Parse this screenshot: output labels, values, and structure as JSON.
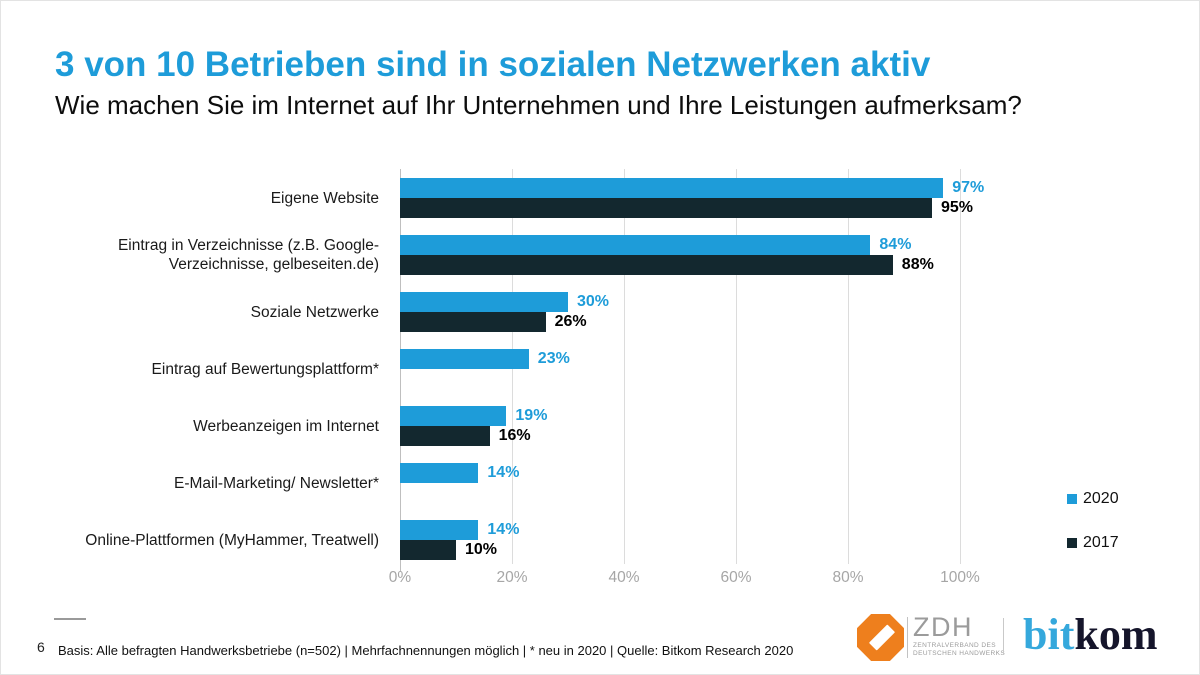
{
  "slide": {
    "title": "3 von 10 Betrieben sind in sozialen Netzwerken aktiv",
    "subtitle": "Wie machen Sie im Internet auf Ihr Unternehmen und Ihre Leistungen aufmerksam?"
  },
  "colors": {
    "accent_blue": "#1E9CD9",
    "dark_navy": "#13282F",
    "grid_gray": "#DCDCDC",
    "axis_gray": "#BFBFBF",
    "tick_label_gray": "#A6A6A6",
    "value_label_dark": "#000000",
    "zdh_orange": "#EE7F1D",
    "zdh_gray": "#9B9B9B",
    "bitkom_blue": "#35A8DC",
    "bitkom_dark": "#15152B"
  },
  "chart_data": {
    "type": "bar",
    "orientation": "horizontal",
    "title": "",
    "xlabel": "",
    "ylabel": "",
    "categories": [
      "Eigene Website",
      "Eintrag in Verzeichnisse (z.B. Google-Verzeichnisse, gelbeseiten.de)",
      "Soziale Netzwerke",
      "Eintrag auf Bewertungsplattform*",
      "Werbeanzeigen im Internet",
      "E-Mail-Marketing/ Newsletter*",
      "Online-Plattformen (MyHammer, Treatwell)"
    ],
    "series": [
      {
        "name": "2020",
        "values": [
          97,
          84,
          30,
          23,
          19,
          14,
          14
        ]
      },
      {
        "name": "2017",
        "values": [
          95,
          88,
          26,
          null,
          16,
          null,
          10
        ]
      }
    ],
    "value_suffix": "%",
    "xlim": [
      0,
      100
    ],
    "x_tick_labels": [
      "0%",
      "20%",
      "40%",
      "60%",
      "80%",
      "100%"
    ],
    "grid": true,
    "legend_position": "right"
  },
  "legend": [
    {
      "label": "2020"
    },
    {
      "label": "2017"
    }
  ],
  "footer": {
    "page_number": "6",
    "text": "Basis: Alle befragten Handwerksbetriebe (n=502) | Mehrfachnennungen möglich | * neu in 2020 | Quelle: Bitkom Research 2020"
  },
  "logos": {
    "zdh": {
      "abbr": "ZDH",
      "tagline_line1": "ZENTRALVERBAND DES",
      "tagline_line2": "DEUTSCHEN HANDWERKS"
    },
    "bitkom": {
      "part1": "bit",
      "part2": "kom"
    }
  }
}
